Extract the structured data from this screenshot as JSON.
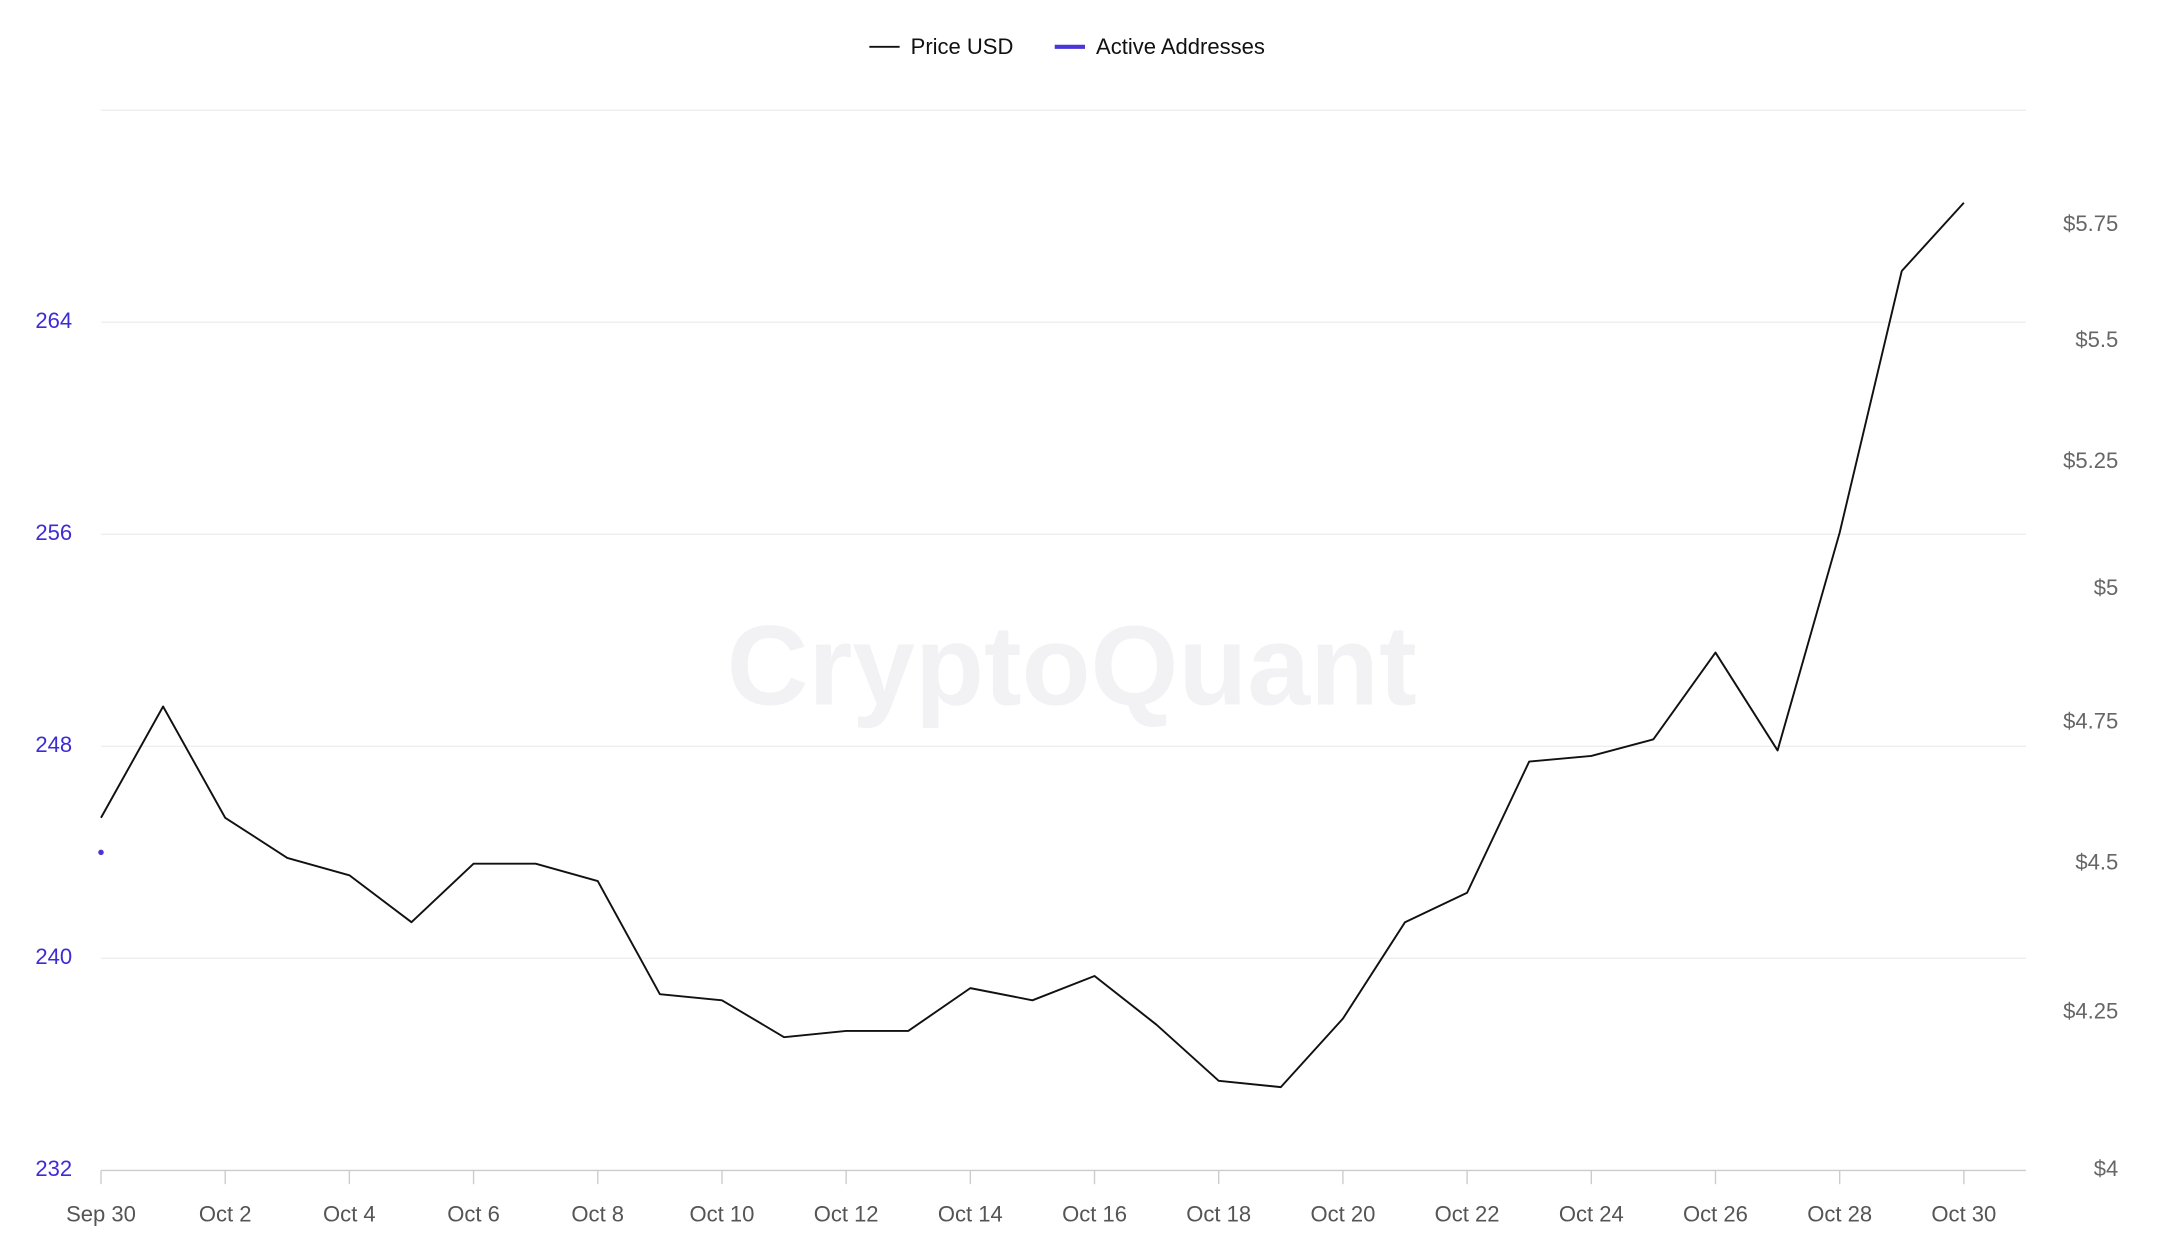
{
  "chart_data": {
    "type": "line",
    "watermark": "CryptoQuant",
    "categories": [
      "Sep 30",
      null,
      "Oct 2",
      null,
      "Oct 4",
      null,
      "Oct 6",
      null,
      "Oct 8",
      null,
      "Oct 10",
      null,
      "Oct 12",
      null,
      "Oct 14",
      null,
      "Oct 16",
      null,
      "Oct 18",
      null,
      "Oct 20",
      null,
      "Oct 22",
      null,
      "Oct 24",
      null,
      "Oct 26",
      null,
      "Oct 28",
      null,
      "Oct 30"
    ],
    "series": [
      {
        "name": "Price USD",
        "color": "#111111",
        "axis": "y2",
        "values": [
          4.58,
          4.78,
          4.58,
          4.51,
          4.48,
          4.4,
          4.5,
          4.5,
          4.47,
          4.28,
          4.27,
          4.21,
          4.22,
          4.22,
          4.29,
          4.27,
          4.31,
          4.23,
          4.14,
          4.13,
          4.24,
          4.4,
          4.45,
          4.68,
          4.69,
          4.72,
          4.88,
          4.7,
          5.11,
          5.65,
          5.8
        ]
      },
      {
        "name": "Active Addresses",
        "color": "#4a35d8",
        "values": [
          244,
          null,
          null,
          null,
          null,
          null,
          null,
          null,
          null,
          null,
          null,
          null,
          null,
          null,
          null,
          null,
          null,
          null,
          null,
          null,
          null,
          null,
          null,
          null,
          null,
          null,
          null,
          null,
          null,
          null,
          null
        ]
      }
    ],
    "ylim": [
      232,
      272
    ],
    "yticks": [
      232,
      240,
      248,
      256,
      264
    ],
    "y2lim": [
      4,
      6.01
    ],
    "y2log": true,
    "y2ticks": [
      {
        "value": 4,
        "label": "$4"
      },
      {
        "value": 4.25,
        "label": "$4.25"
      },
      {
        "value": 4.5,
        "label": "$4.5"
      },
      {
        "value": 4.75,
        "label": "$4.75"
      },
      {
        "value": 5,
        "label": "$5"
      },
      {
        "value": 5.25,
        "label": "$5.25"
      },
      {
        "value": 5.5,
        "label": "$5.5"
      },
      {
        "value": 5.75,
        "label": "$5.75"
      }
    ],
    "grid": true,
    "legend": "top"
  }
}
